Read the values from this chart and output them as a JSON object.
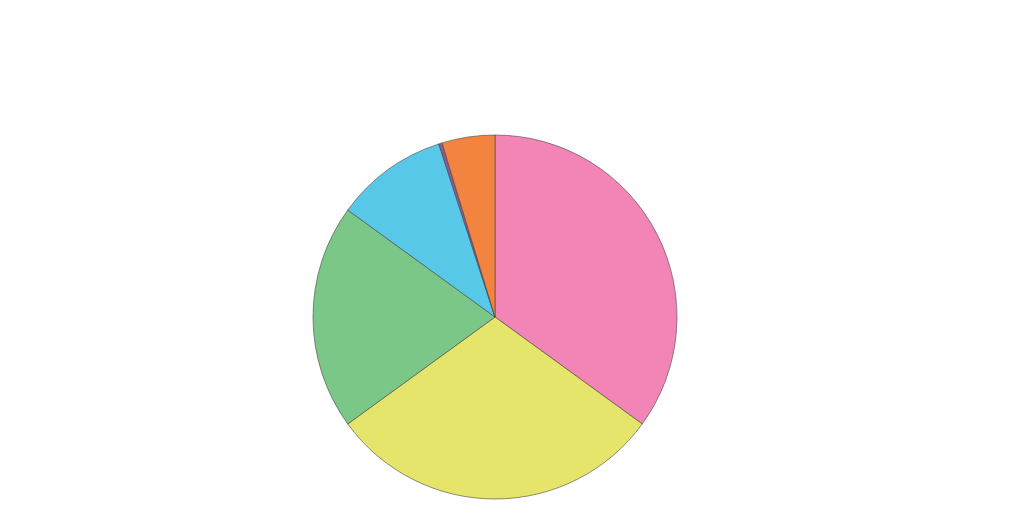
{
  "chart_data": {
    "type": "pie",
    "categories": [
      null,
      null,
      null,
      null,
      null,
      null
    ],
    "values": [
      35,
      30,
      20,
      10,
      0.3,
      4.7
    ],
    "colors": [
      "#f285b5",
      "#e6e56b",
      "#7bc787",
      "#58c8e8",
      "#8c5a9a",
      "#f28440"
    ]
  }
}
